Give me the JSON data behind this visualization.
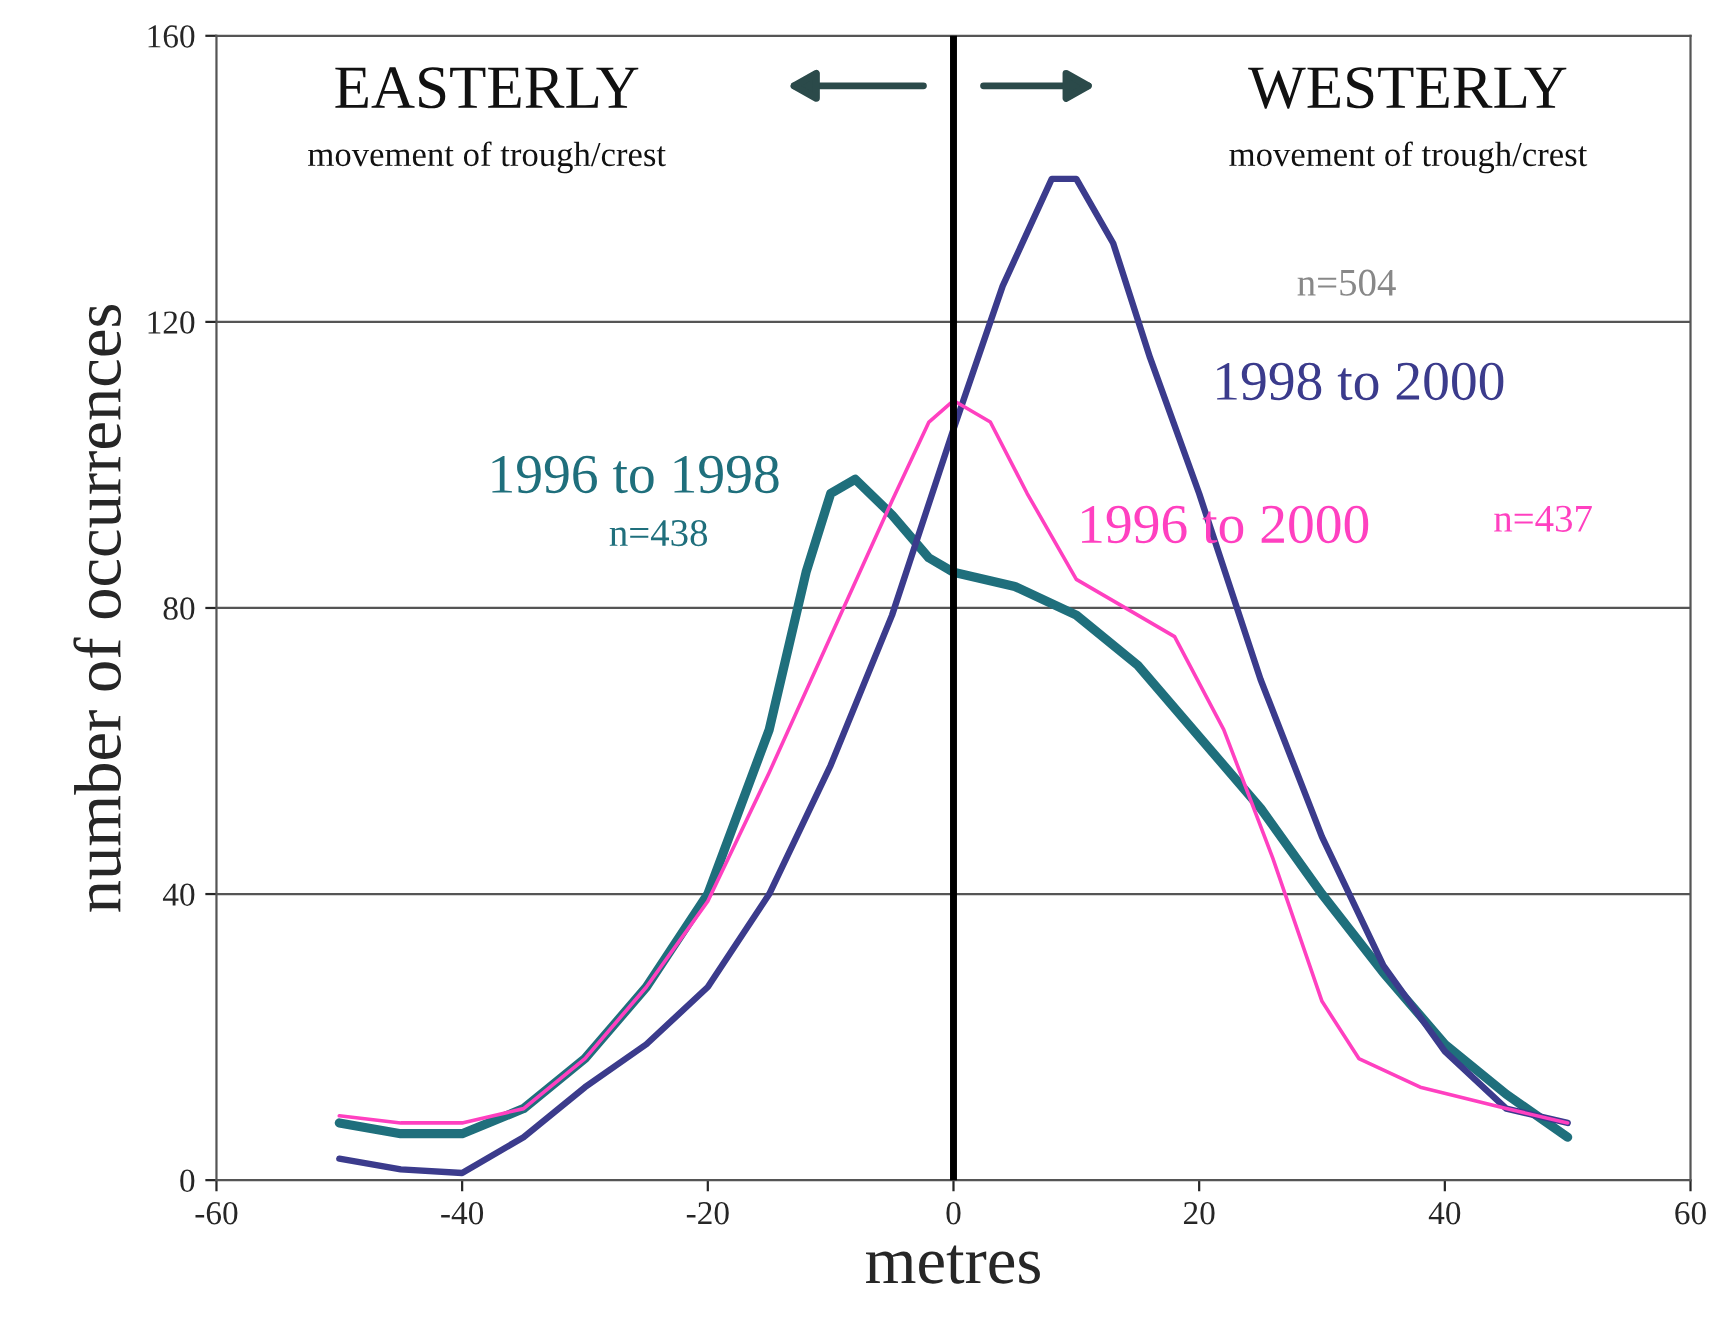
{
  "chart_data": {
    "type": "line",
    "xlabel": "metres",
    "ylabel": "number of occurrences",
    "xlim": [
      -60,
      60
    ],
    "xticks": [
      -60,
      -40,
      -20,
      0,
      20,
      40,
      60
    ],
    "ylim": [
      0,
      160
    ],
    "yticks": [
      0,
      40,
      80,
      120,
      160
    ],
    "grid": "y",
    "legend": false,
    "marker": "none",
    "line_style": "solid",
    "series": [
      {
        "name": "1996 to 1998",
        "color": "#1f6f7c",
        "x": [
          -50,
          -45,
          -40,
          -35,
          -30,
          -25,
          -20,
          -15,
          -12,
          -10,
          -8,
          -5,
          -2,
          0,
          5,
          10,
          15,
          20,
          25,
          30,
          35,
          40,
          45,
          50
        ],
        "values": [
          8,
          6.5,
          6.5,
          10,
          17,
          27,
          40,
          63,
          85,
          96,
          98,
          93,
          87,
          85,
          83,
          79,
          72,
          62,
          52,
          40,
          29,
          19,
          12,
          6
        ]
      },
      {
        "name": "1998 to 2000",
        "color": "#3b3b8c",
        "x": [
          -50,
          -45,
          -40,
          -35,
          -30,
          -25,
          -20,
          -15,
          -10,
          -5,
          0,
          4,
          8,
          10,
          13,
          16,
          20,
          25,
          30,
          35,
          40,
          45,
          50
        ],
        "values": [
          3,
          1.5,
          1,
          6,
          13,
          19,
          27,
          40,
          58,
          79,
          105,
          125,
          140,
          140,
          131,
          115,
          96,
          70,
          48,
          30,
          18,
          10,
          8
        ]
      },
      {
        "name": "1996 to 2000",
        "color": "#ff40c0",
        "x": [
          -50,
          -45,
          -40,
          -35,
          -30,
          -25,
          -20,
          -15,
          -10,
          -5,
          -2,
          0,
          3,
          6,
          10,
          15,
          18,
          22,
          26,
          30,
          33,
          38,
          45,
          50
        ],
        "values": [
          9,
          8,
          8,
          10,
          17,
          27,
          39,
          57,
          76,
          95,
          106,
          109,
          106,
          96,
          84,
          79,
          76,
          63,
          45,
          25,
          17,
          13,
          10,
          8
        ]
      }
    ],
    "ref_lines": [
      {
        "axis": "x",
        "value": 0,
        "color": "#000000"
      }
    ],
    "annotations": [
      "EASTERLY",
      "movement of trough/crest",
      "WESTERLY",
      "movement of trough/crest",
      "n=438",
      "n=504",
      "n=437"
    ]
  }
}
